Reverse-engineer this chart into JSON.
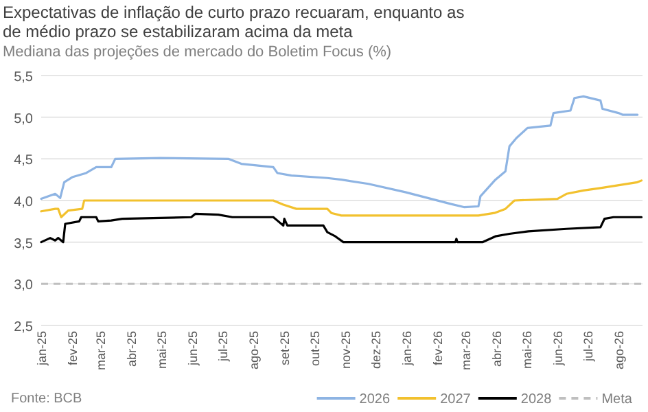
{
  "chart_data": {
    "type": "line",
    "title": "Expectativas de inflação de curto prazo recuaram, enquanto as de médio prazo se estabilizaram acima da meta",
    "subtitle": "Mediana das projeções de mercado do Boletim Focus (%)",
    "annotations": [
      "Fonte: BCB"
    ],
    "xlim": [
      "2025-01-01",
      "2026-08-25"
    ],
    "xticks": [
      {
        "value": "2025-01-01",
        "label": "jan-25"
      },
      {
        "value": "2025-02-01",
        "label": "fev-25"
      },
      {
        "value": "2025-03-01",
        "label": "mar-25"
      },
      {
        "value": "2025-04-01",
        "label": "abr-25"
      },
      {
        "value": "2025-05-01",
        "label": "mai-25"
      },
      {
        "value": "2025-06-01",
        "label": "jun-25"
      },
      {
        "value": "2025-07-01",
        "label": "jul-25"
      },
      {
        "value": "2025-08-01",
        "label": "ago-25"
      },
      {
        "value": "2025-09-01",
        "label": "set-25"
      },
      {
        "value": "2025-10-01",
        "label": "out-25"
      },
      {
        "value": "2025-11-01",
        "label": "nov-25"
      },
      {
        "value": "2025-12-01",
        "label": "dez-25"
      },
      {
        "value": "2026-01-01",
        "label": "jan-26"
      },
      {
        "value": "2026-02-01",
        "label": "fev-26"
      },
      {
        "value": "2026-03-01",
        "label": "mar-26"
      },
      {
        "value": "2026-04-01",
        "label": "abr-26"
      },
      {
        "value": "2026-05-01",
        "label": "mai-26"
      },
      {
        "value": "2026-06-01",
        "label": "jun-26"
      },
      {
        "value": "2026-07-01",
        "label": "jul-26"
      },
      {
        "value": "2026-08-01",
        "label": "ago-26"
      }
    ],
    "ylim": [
      2.5,
      5.5
    ],
    "yticks": [
      {
        "value": 2.5,
        "label": "2,5"
      },
      {
        "value": 3,
        "label": "3,0"
      },
      {
        "value": 3.5,
        "label": "3,5"
      },
      {
        "value": 4,
        "label": "4,0"
      },
      {
        "value": 4.5,
        "label": "4,5"
      },
      {
        "value": 5,
        "label": "5,0"
      },
      {
        "value": 5.5,
        "label": "5,5"
      }
    ],
    "grid": "y",
    "legend": "bottom",
    "line_style": "solid",
    "marker": "none",
    "ref_lines": [
      {
        "axis": "y",
        "value": 3,
        "label": "Meta",
        "color": "#bfbfbf",
        "line_style": "dashed"
      }
    ],
    "series": [
      {
        "name": "2026",
        "color": "#8eb4e3",
        "x": [
          "2025-01-01",
          "2025-01-15",
          "2025-01-20",
          "2025-01-24",
          "2025-02-01",
          "2025-02-15",
          "2025-02-25",
          "2025-03-12",
          "2025-03-16",
          "2025-04-30",
          "2025-07-07",
          "2025-07-20",
          "2025-08-21",
          "2025-08-25",
          "2025-09-08",
          "2025-10-14",
          "2025-10-28",
          "2025-11-24",
          "2025-12-31",
          "2026-02-14",
          "2026-02-28",
          "2026-03-14",
          "2026-03-16",
          "2026-03-31",
          "2026-04-10",
          "2026-04-14",
          "2026-04-21",
          "2026-05-02",
          "2026-05-25",
          "2026-05-28",
          "2026-06-14",
          "2026-06-18",
          "2026-06-27",
          "2026-07-14",
          "2026-07-16",
          "2026-08-01",
          "2026-08-05",
          "2026-08-20"
        ],
        "values": [
          4.02,
          4.08,
          4.03,
          4.22,
          4.28,
          4.33,
          4.4,
          4.4,
          4.5,
          4.51,
          4.5,
          4.44,
          4.4,
          4.33,
          4.3,
          4.27,
          4.25,
          4.2,
          4.1,
          3.96,
          3.92,
          3.93,
          4.05,
          4.25,
          4.35,
          4.65,
          4.75,
          4.87,
          4.9,
          5.05,
          5.08,
          5.23,
          5.25,
          5.2,
          5.1,
          5.05,
          5.03,
          5.03
        ]
      },
      {
        "name": "2027",
        "color": "#f2c12e",
        "x": [
          "2025-01-01",
          "2025-01-15",
          "2025-01-18",
          "2025-01-21",
          "2025-01-28",
          "2025-02-11",
          "2025-02-13",
          "2025-08-21",
          "2025-08-31",
          "2025-09-13",
          "2025-10-14",
          "2025-10-18",
          "2025-10-28",
          "2026-03-14",
          "2026-03-30",
          "2026-04-10",
          "2026-04-19",
          "2026-06-01",
          "2026-06-10",
          "2026-06-27",
          "2026-07-14",
          "2026-08-20",
          "2026-08-24"
        ],
        "values": [
          3.87,
          3.9,
          3.9,
          3.8,
          3.88,
          3.9,
          4.0,
          4.0,
          3.95,
          3.9,
          3.9,
          3.85,
          3.82,
          3.82,
          3.85,
          3.9,
          4.0,
          4.02,
          4.08,
          4.12,
          4.15,
          4.22,
          4.24
        ]
      },
      {
        "name": "2028",
        "color": "#000000",
        "x": [
          "2025-01-01",
          "2025-01-10",
          "2025-01-15",
          "2025-01-18",
          "2025-01-23",
          "2025-01-25",
          "2025-02-08",
          "2025-02-10",
          "2025-02-25",
          "2025-02-27",
          "2025-03-12",
          "2025-03-23",
          "2025-05-31",
          "2025-06-04",
          "2025-06-27",
          "2025-07-11",
          "2025-08-21",
          "2025-08-25",
          "2025-08-31",
          "2025-09-01",
          "2025-09-04",
          "2025-10-10",
          "2025-10-14",
          "2025-10-22",
          "2025-10-30",
          "2026-02-19",
          "2026-02-20",
          "2026-02-21",
          "2026-03-18",
          "2026-03-31",
          "2026-04-14",
          "2026-05-03",
          "2026-06-10",
          "2026-07-14",
          "2026-07-18",
          "2026-07-27",
          "2026-08-24"
        ],
        "values": [
          3.5,
          3.55,
          3.52,
          3.55,
          3.5,
          3.72,
          3.75,
          3.8,
          3.8,
          3.75,
          3.76,
          3.78,
          3.8,
          3.84,
          3.83,
          3.8,
          3.8,
          3.76,
          3.7,
          3.78,
          3.7,
          3.7,
          3.62,
          3.57,
          3.5,
          3.5,
          3.54,
          3.5,
          3.5,
          3.57,
          3.6,
          3.63,
          3.66,
          3.68,
          3.78,
          3.8,
          3.8
        ]
      }
    ]
  }
}
